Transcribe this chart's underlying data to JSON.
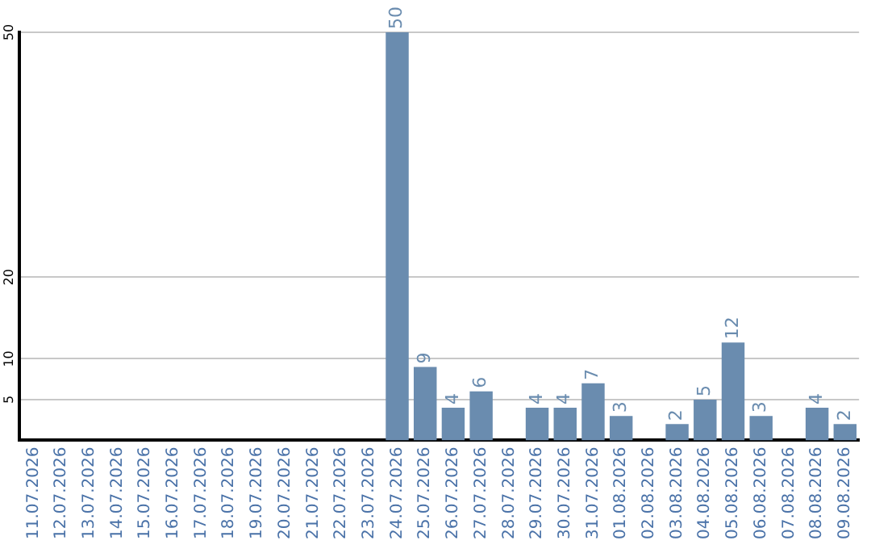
{
  "chart_data": {
    "type": "bar",
    "categories": [
      "11.07.2026",
      "12.07.2026",
      "13.07.2026",
      "14.07.2026",
      "15.07.2026",
      "16.07.2026",
      "17.07.2026",
      "18.07.2026",
      "19.07.2026",
      "20.07.2026",
      "21.07.2026",
      "22.07.2026",
      "23.07.2026",
      "24.07.2026",
      "25.07.2026",
      "26.07.2026",
      "27.07.2026",
      "28.07.2026",
      "29.07.2026",
      "30.07.2026",
      "31.07.2026",
      "01.08.2026",
      "02.08.2026",
      "03.08.2026",
      "04.08.2026",
      "05.08.2026",
      "06.08.2026",
      "07.08.2026",
      "08.08.2026",
      "09.08.2026"
    ],
    "values": [
      0,
      0,
      0,
      0,
      0,
      0,
      0,
      0,
      0,
      0,
      0,
      0,
      0,
      50,
      9,
      4,
      6,
      0,
      4,
      4,
      7,
      3,
      0,
      2,
      5,
      12,
      3,
      0,
      4,
      2
    ],
    "value_labels": [
      null,
      null,
      null,
      null,
      null,
      null,
      null,
      null,
      null,
      null,
      null,
      null,
      null,
      "50",
      "9",
      "4",
      "6",
      null,
      "4",
      "4",
      "7",
      "3",
      null,
      "2",
      "5",
      "12",
      "3",
      null,
      "4",
      "2"
    ],
    "color": "#6a8caf",
    "ylim": [
      0,
      50
    ],
    "yticks": [
      5,
      10,
      20,
      50
    ],
    "grid": "y",
    "legend": false
  }
}
